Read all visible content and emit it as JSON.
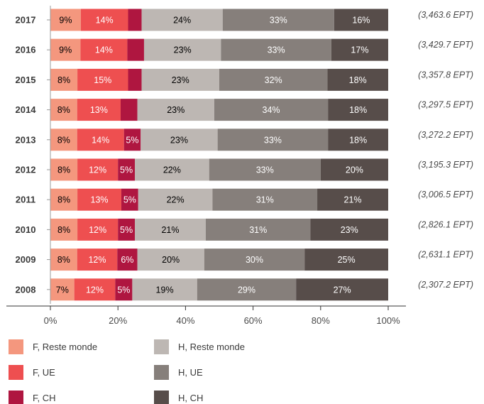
{
  "chart_data": {
    "type": "bar",
    "orientation": "horizontal",
    "stacked": true,
    "percent_scale": true,
    "categories": [
      "2017",
      "2016",
      "2015",
      "2014",
      "2013",
      "2012",
      "2011",
      "2010",
      "2009",
      "2008"
    ],
    "totals": [
      "(3,463.6 EPT)",
      "(3,429.7 EPT)",
      "(3,357.8 EPT)",
      "(3,297.5 EPT)",
      "(3,272.2 EPT)",
      "(3,195.3 EPT)",
      "(3,006.5 EPT)",
      "(2,826.1 EPT)",
      "(2,631.1 EPT)",
      "(2,307.2 EPT)"
    ],
    "series": [
      {
        "name": "F, Reste monde",
        "color": "#F4977E",
        "label_color": "#000000",
        "values": [
          9,
          9,
          8,
          8,
          8,
          8,
          8,
          8,
          8,
          7
        ]
      },
      {
        "name": "F, UE",
        "color": "#EE4F50",
        "label_color": "#ffffff",
        "values": [
          14,
          14,
          15,
          13,
          14,
          12,
          13,
          12,
          12,
          12
        ]
      },
      {
        "name": "F, CH",
        "color": "#AF1640",
        "label_color": "#ffffff",
        "values": [
          4,
          5,
          4,
          5,
          5,
          5,
          5,
          5,
          6,
          5
        ],
        "labels": [
          "",
          "",
          "",
          "",
          "5%",
          "5%",
          "5%",
          "5%",
          "6%",
          "5%"
        ]
      },
      {
        "name": "H, Reste monde",
        "color": "#BDB7B3",
        "label_color": "#000000",
        "values": [
          24,
          23,
          23,
          23,
          23,
          22,
          22,
          21,
          20,
          19
        ]
      },
      {
        "name": "H, UE",
        "color": "#867F7B",
        "label_color": "#ffffff",
        "values": [
          33,
          33,
          32,
          34,
          33,
          33,
          31,
          31,
          30,
          29
        ]
      },
      {
        "name": "H, CH",
        "color": "#574D4A",
        "label_color": "#ffffff",
        "values": [
          16,
          17,
          18,
          18,
          18,
          20,
          21,
          23,
          25,
          27
        ]
      }
    ],
    "xlim": [
      0,
      100
    ],
    "xticks": [
      "0%",
      "20%",
      "40%",
      "60%",
      "80%",
      "100%"
    ],
    "legend_position": "bottom"
  }
}
